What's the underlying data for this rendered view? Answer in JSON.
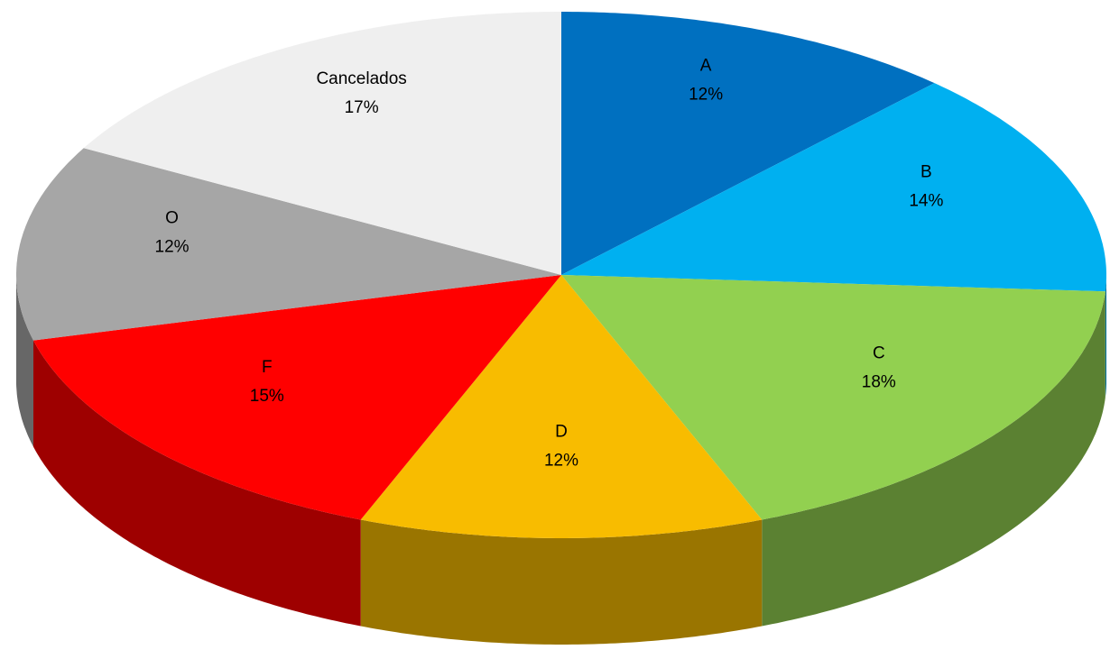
{
  "chart_data": {
    "type": "pie3d",
    "categories": [
      "A",
      "B",
      "C",
      "D",
      "F",
      "O",
      "Cancelados"
    ],
    "values": [
      12,
      14,
      18,
      12,
      15,
      12,
      17
    ],
    "value_labels": [
      "12%",
      "14%",
      "18%",
      "12%",
      "15%",
      "12%",
      "17%"
    ],
    "colors": [
      "#0070c0",
      "#00b0f0",
      "#92d050",
      "#f8bc00",
      "#ff0000",
      "#a6a6a6",
      "#efefef"
    ]
  }
}
